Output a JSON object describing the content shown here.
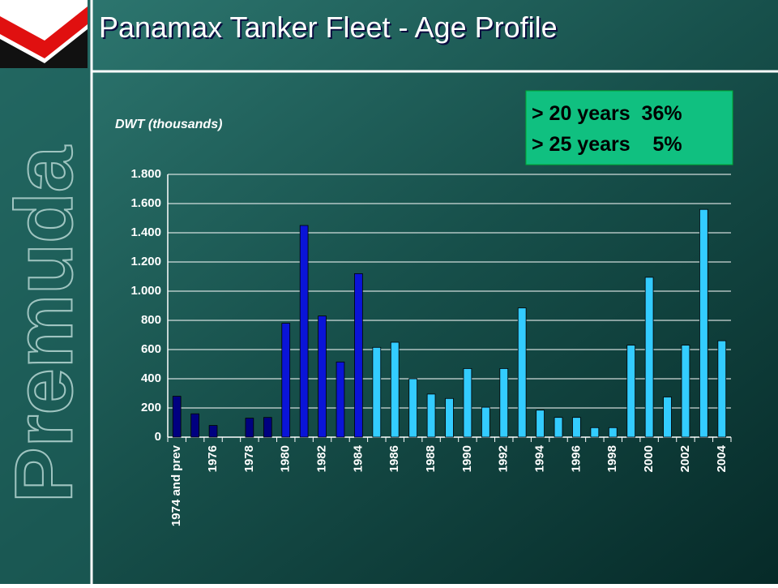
{
  "logo_text": "Premuda",
  "chart_data": {
    "type": "bar",
    "title": "Panamax Tanker Fleet -  Age Profile",
    "y_label": "DWT (thousands)",
    "annotations": [
      "> 20 years  36%",
      "> 25 years    5%"
    ],
    "categories": [
      "1974 and prev",
      null,
      "1976",
      null,
      "1978",
      null,
      "1980",
      null,
      "1982",
      null,
      "1984",
      null,
      "1986",
      null,
      "1988",
      null,
      "1990",
      null,
      "1992",
      null,
      "1994",
      null,
      "1996",
      null,
      "1998",
      null,
      "2000",
      null,
      "2002",
      null,
      "2004"
    ],
    "values": [
      280,
      160,
      80,
      0,
      130,
      135,
      780,
      1450,
      830,
      515,
      1120,
      615,
      650,
      400,
      295,
      265,
      470,
      205,
      470,
      885,
      185,
      135,
      135,
      65,
      65,
      630,
      1095,
      275,
      630,
      1560,
      660
    ],
    "colors": [
      "#000080",
      "#000080",
      "#000080",
      "#000080",
      "#000080",
      "#000080",
      "#0a14d8",
      "#0a14d8",
      "#0a14d8",
      "#0a14d8",
      "#0a14d8",
      "#33ccff",
      "#33ccff",
      "#33ccff",
      "#33ccff",
      "#33ccff",
      "#33ccff",
      "#33ccff",
      "#33ccff",
      "#33ccff",
      "#33ccff",
      "#33ccff",
      "#33ccff",
      "#33ccff",
      "#33ccff",
      "#33ccff",
      "#33ccff",
      "#33ccff",
      "#33ccff",
      "#33ccff",
      "#33ccff"
    ],
    "ylim": [
      0,
      1800
    ],
    "yticks": [
      0,
      200,
      400,
      600,
      800,
      {
        "value": 1000,
        "label": "1.000"
      },
      {
        "value": 1200,
        "label": "1.200"
      },
      {
        "value": 1400,
        "label": "1.400"
      },
      {
        "value": 1600,
        "label": "1.600"
      },
      {
        "value": 1800,
        "label": "1.800"
      }
    ],
    "grid": true
  }
}
